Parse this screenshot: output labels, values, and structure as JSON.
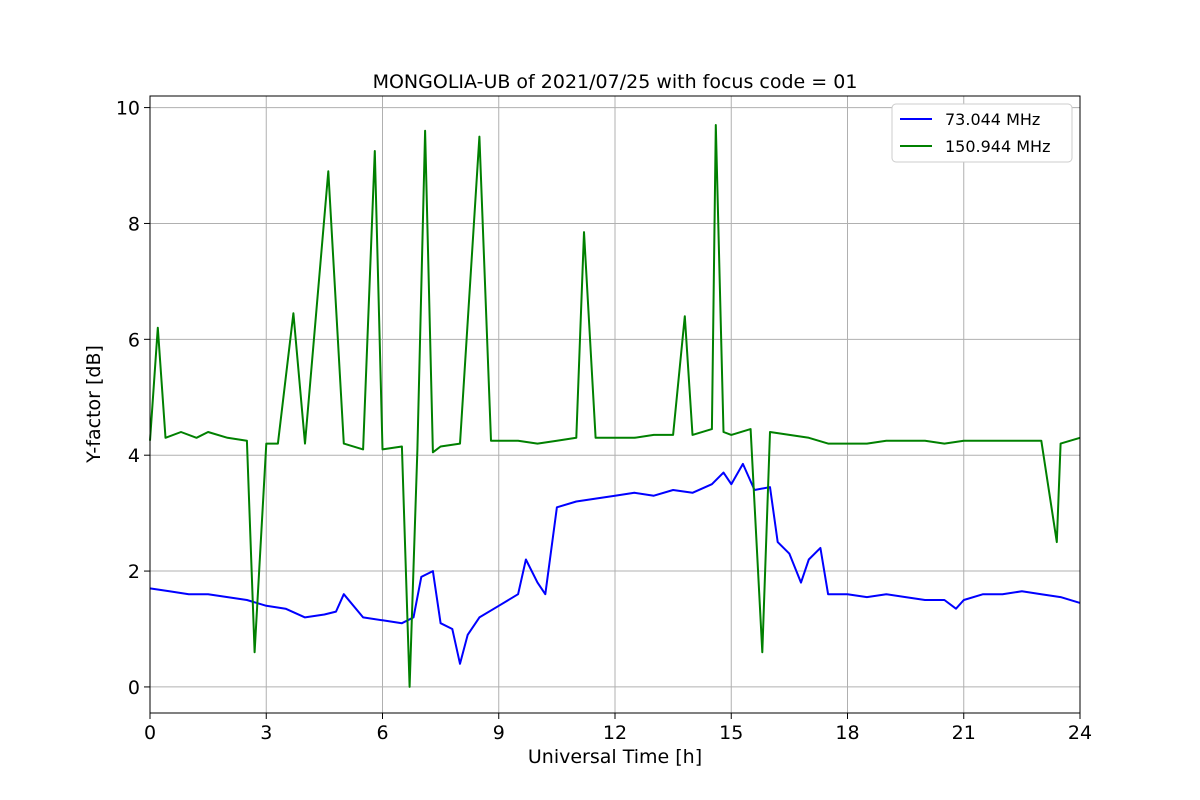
{
  "chart_data": {
    "type": "line",
    "title": "MONGOLIA-UB of 2021/07/25 with focus code = 01",
    "xlabel": "Universal Time [h]",
    "ylabel": "Y-factor [dB]",
    "xlim": [
      0,
      24
    ],
    "ylim": [
      -0.45,
      10.2
    ],
    "xticks": [
      0,
      3,
      6,
      9,
      12,
      15,
      18,
      21,
      24
    ],
    "yticks": [
      0,
      2,
      4,
      6,
      8,
      10
    ],
    "grid": true,
    "legend_position": "top-right",
    "series": [
      {
        "name": "73.044 MHz",
        "color": "#0000ff",
        "x": [
          0.0,
          0.5,
          1.0,
          1.5,
          2.0,
          2.5,
          3.0,
          3.5,
          4.0,
          4.5,
          4.8,
          5.0,
          5.5,
          6.0,
          6.5,
          6.8,
          7.0,
          7.3,
          7.5,
          7.8,
          8.0,
          8.2,
          8.5,
          9.0,
          9.5,
          9.7,
          10.0,
          10.2,
          10.5,
          11.0,
          11.5,
          12.0,
          12.5,
          13.0,
          13.5,
          14.0,
          14.5,
          14.8,
          15.0,
          15.3,
          15.6,
          16.0,
          16.2,
          16.5,
          16.8,
          17.0,
          17.3,
          17.5,
          18.0,
          18.5,
          19.0,
          19.5,
          20.0,
          20.5,
          20.8,
          21.0,
          21.5,
          22.0,
          22.5,
          23.0,
          23.5,
          24.0
        ],
        "y": [
          1.7,
          1.65,
          1.6,
          1.6,
          1.55,
          1.5,
          1.4,
          1.35,
          1.2,
          1.25,
          1.3,
          1.6,
          1.2,
          1.15,
          1.1,
          1.2,
          1.9,
          2.0,
          1.1,
          1.0,
          0.4,
          0.9,
          1.2,
          1.4,
          1.6,
          2.2,
          1.8,
          1.6,
          3.1,
          3.2,
          3.25,
          3.3,
          3.35,
          3.3,
          3.4,
          3.35,
          3.5,
          3.7,
          3.5,
          3.85,
          3.4,
          3.45,
          2.5,
          2.3,
          1.8,
          2.2,
          2.4,
          1.6,
          1.6,
          1.55,
          1.6,
          1.55,
          1.5,
          1.5,
          1.35,
          1.5,
          1.6,
          1.6,
          1.65,
          1.6,
          1.55,
          1.45
        ]
      },
      {
        "name": "150.944 MHz",
        "color": "#008000",
        "x": [
          0.0,
          0.2,
          0.4,
          0.8,
          1.2,
          1.5,
          2.0,
          2.5,
          2.7,
          3.0,
          3.3,
          3.7,
          4.0,
          4.6,
          5.0,
          5.5,
          5.8,
          6.0,
          6.5,
          6.7,
          6.9,
          7.1,
          7.3,
          7.5,
          8.0,
          8.5,
          8.8,
          9.0,
          9.5,
          10.0,
          10.5,
          11.0,
          11.2,
          11.5,
          12.0,
          12.5,
          13.0,
          13.5,
          13.8,
          14.0,
          14.5,
          14.6,
          14.8,
          15.0,
          15.5,
          15.8,
          16.0,
          16.5,
          17.0,
          17.5,
          18.0,
          18.5,
          19.0,
          19.5,
          20.0,
          20.5,
          21.0,
          21.5,
          22.0,
          22.5,
          23.0,
          23.4,
          23.5,
          24.0
        ],
        "y": [
          4.25,
          6.2,
          4.3,
          4.4,
          4.3,
          4.4,
          4.3,
          4.25,
          0.6,
          4.2,
          4.2,
          6.45,
          4.2,
          8.9,
          4.2,
          4.1,
          9.25,
          4.1,
          4.15,
          0.0,
          4.1,
          9.6,
          4.05,
          4.15,
          4.2,
          9.5,
          4.25,
          4.25,
          4.25,
          4.2,
          4.25,
          4.3,
          7.85,
          4.3,
          4.3,
          4.3,
          4.35,
          4.35,
          6.4,
          4.35,
          4.45,
          9.7,
          4.4,
          4.35,
          4.45,
          0.6,
          4.4,
          4.35,
          4.3,
          4.2,
          4.2,
          4.2,
          4.25,
          4.25,
          4.25,
          4.2,
          4.25,
          4.25,
          4.25,
          4.25,
          4.25,
          2.5,
          4.2,
          4.3
        ]
      }
    ]
  }
}
